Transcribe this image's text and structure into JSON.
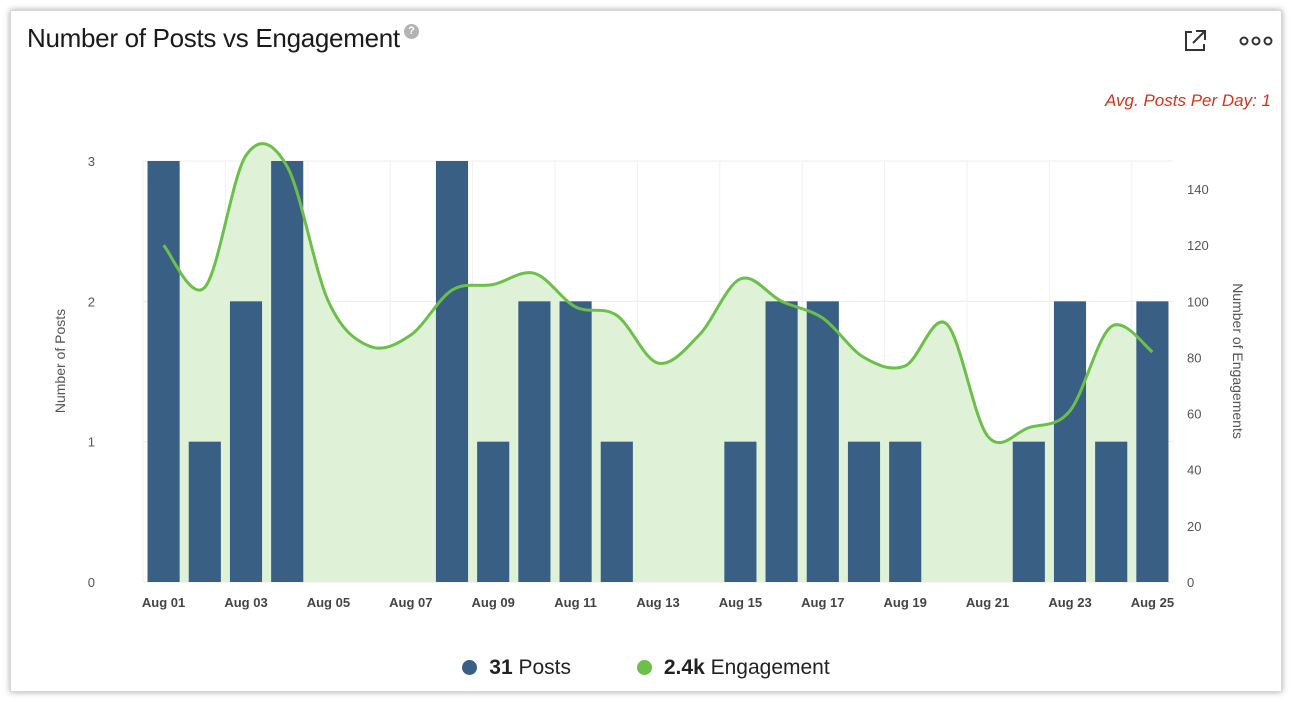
{
  "header": {
    "title": "Number of Posts vs Engagement",
    "help": "?",
    "avg_label": "Avg. Posts Per Day: 1"
  },
  "colors": {
    "posts": "#3a5f85",
    "engagement": "#6cc04a",
    "area": "#dff2d8",
    "avg": "#d0351c"
  },
  "legend": {
    "posts": {
      "value": "31",
      "label": "Posts"
    },
    "engagement": {
      "value": "2.4k",
      "label": "Engagement"
    }
  },
  "chart_data": {
    "type": "bar",
    "title": "Number of Posts vs Engagement",
    "categories": [
      "Aug 01",
      "Aug 02",
      "Aug 03",
      "Aug 04",
      "Aug 05",
      "Aug 06",
      "Aug 07",
      "Aug 08",
      "Aug 09",
      "Aug 10",
      "Aug 11",
      "Aug 12",
      "Aug 13",
      "Aug 14",
      "Aug 15",
      "Aug 16",
      "Aug 17",
      "Aug 18",
      "Aug 19",
      "Aug 20",
      "Aug 21",
      "Aug 22",
      "Aug 23",
      "Aug 24",
      "Aug 25"
    ],
    "x_tick_labels": [
      "Aug 01",
      "Aug 03",
      "Aug 05",
      "Aug 07",
      "Aug 09",
      "Aug 11",
      "Aug 13",
      "Aug 15",
      "Aug 17",
      "Aug 19",
      "Aug 21",
      "Aug 23",
      "Aug 25"
    ],
    "series": [
      {
        "name": "Posts",
        "type": "bar",
        "axis": "left",
        "values": [
          3,
          1,
          2,
          3,
          0,
          0,
          0,
          3,
          1,
          2,
          2,
          1,
          0,
          0,
          1,
          2,
          2,
          1,
          1,
          0,
          0,
          1,
          2,
          1,
          2
        ]
      },
      {
        "name": "Engagement",
        "type": "area",
        "axis": "right",
        "values": [
          120,
          105,
          152,
          148,
          100,
          84,
          88,
          104,
          106,
          110,
          98,
          95,
          78,
          88,
          108,
          100,
          94,
          80,
          77,
          92,
          52,
          55,
          61,
          91,
          82
        ]
      }
    ],
    "ylabel": "Number of Posts",
    "ylim": [
      0,
      3
    ],
    "yticks": [
      0,
      1,
      2,
      3
    ],
    "y2label": "Number of Engagements",
    "y2lim": [
      0,
      150
    ],
    "y2ticks": [
      0,
      20,
      40,
      60,
      80,
      100,
      120,
      140
    ],
    "grid": true,
    "legend_position": "bottom"
  }
}
